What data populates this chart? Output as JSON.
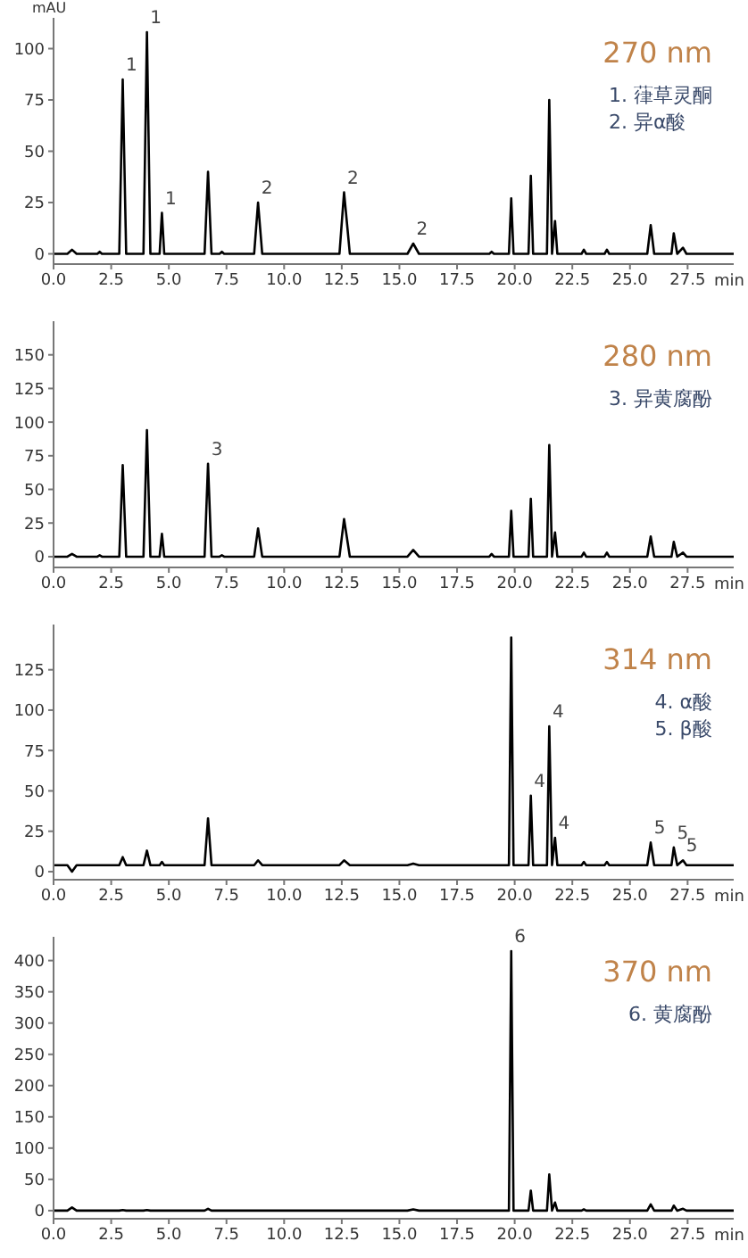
{
  "chart_data": [
    {
      "type": "line",
      "title": "270 nm",
      "xlabel": "min",
      "ylabel": "mAU",
      "xlim": [
        0,
        29.5
      ],
      "ylim": [
        -5,
        115
      ],
      "xticks": [
        {
          "value": 0,
          "label": "0.0"
        },
        2.5,
        {
          "value": 5,
          "label": "5.0"
        },
        7.5,
        {
          "value": 10,
          "label": "10.0"
        },
        12.5,
        {
          "value": 15,
          "label": "15.0"
        },
        17.5,
        {
          "value": 20,
          "label": "20.0"
        },
        22.5,
        {
          "value": 25,
          "label": "25.0"
        },
        27.5
      ],
      "yticks": [
        0,
        25,
        50,
        75,
        100
      ],
      "x": [
        0,
        0.6,
        0.8,
        1.0,
        1.9,
        2.0,
        2.1,
        2.85,
        3.0,
        3.15,
        3.9,
        4.05,
        4.2,
        4.6,
        4.7,
        4.8,
        6.55,
        6.7,
        6.85,
        7.2,
        7.3,
        7.4,
        8.7,
        8.87,
        9.05,
        12.4,
        12.6,
        12.85,
        15.35,
        15.6,
        15.85,
        18.9,
        19.0,
        19.1,
        19.75,
        19.85,
        19.95,
        20.6,
        20.7,
        20.8,
        21.4,
        21.5,
        21.62,
        21.75,
        21.85,
        22.9,
        23.0,
        23.1,
        23.9,
        24.0,
        24.1,
        25.75,
        25.9,
        26.05,
        26.8,
        26.9,
        27.05,
        27.3,
        27.45,
        29.5
      ],
      "series": [
        {
          "color": "#000000",
          "values": [
            0,
            0,
            2,
            0,
            0,
            1,
            0,
            0,
            85,
            0,
            0,
            108,
            0,
            0,
            20,
            0,
            0,
            40,
            0,
            0,
            1,
            0,
            0,
            25,
            0,
            0,
            30,
            0,
            0,
            5,
            0,
            0,
            1,
            0,
            0,
            27,
            0,
            0,
            38,
            0,
            0,
            75,
            0,
            16,
            0,
            0,
            2,
            0,
            0,
            2,
            0,
            0,
            14,
            0,
            0,
            10,
            0,
            3,
            0,
            0
          ]
        }
      ],
      "annotations": [
        {
          "text": "1",
          "x": 3.0,
          "y": 85
        },
        {
          "text": "1",
          "x": 4.05,
          "y": 108
        },
        {
          "text": "1",
          "x": 4.7,
          "y": 20
        },
        {
          "text": "2",
          "x": 8.87,
          "y": 25
        },
        {
          "text": "2",
          "x": 12.6,
          "y": 30
        },
        {
          "text": "2",
          "x": 15.6,
          "y": 5
        },
        "1. 葎草灵酮",
        "2. 异α酸"
      ]
    },
    {
      "type": "line",
      "title": "280 nm",
      "xlabel": "min",
      "xlim": [
        0,
        29.5
      ],
      "ylim": [
        -8,
        175
      ],
      "xticks": [
        {
          "value": 0,
          "label": "0.0"
        },
        2.5,
        {
          "value": 5,
          "label": "5.0"
        },
        7.5,
        {
          "value": 10,
          "label": "10.0"
        },
        12.5,
        {
          "value": 15,
          "label": "15.0"
        },
        17.5,
        {
          "value": 20,
          "label": "20.0"
        },
        22.5,
        {
          "value": 25,
          "label": "25.0"
        },
        27.5
      ],
      "yticks": [
        0,
        25,
        50,
        75,
        100,
        125,
        150
      ],
      "x": [
        0,
        0.6,
        0.8,
        1.0,
        1.9,
        2.0,
        2.1,
        2.85,
        3.0,
        3.15,
        3.9,
        4.05,
        4.2,
        4.6,
        4.7,
        4.8,
        6.55,
        6.7,
        6.85,
        7.2,
        7.3,
        7.4,
        8.7,
        8.87,
        9.05,
        12.4,
        12.6,
        12.85,
        15.35,
        15.6,
        15.85,
        18.9,
        19.0,
        19.1,
        19.75,
        19.85,
        19.95,
        20.6,
        20.7,
        20.8,
        21.4,
        21.5,
        21.62,
        21.75,
        21.85,
        22.9,
        23.0,
        23.1,
        23.9,
        24.0,
        24.1,
        25.75,
        25.9,
        26.05,
        26.8,
        26.9,
        27.05,
        27.3,
        27.45,
        29.5
      ],
      "series": [
        {
          "color": "#000000",
          "values": [
            0,
            0,
            2,
            0,
            0,
            1,
            0,
            0,
            68,
            0,
            0,
            94,
            0,
            0,
            17,
            0,
            0,
            69,
            0,
            0,
            1,
            0,
            0,
            21,
            0,
            0,
            28,
            0,
            0,
            5,
            0,
            0,
            2,
            0,
            0,
            34,
            0,
            0,
            43,
            0,
            0,
            83,
            0,
            18,
            0,
            0,
            3,
            0,
            0,
            3,
            0,
            0,
            15,
            0,
            0,
            11,
            0,
            3,
            0,
            0
          ]
        }
      ],
      "annotations": [
        {
          "text": "3",
          "x": 6.7,
          "y": 69
        },
        "3. 异黄腐酚"
      ]
    },
    {
      "type": "line",
      "title": "314 nm",
      "xlabel": "min",
      "xlim": [
        0,
        29.5
      ],
      "ylim": [
        -5,
        153
      ],
      "xticks": [
        {
          "value": 0,
          "label": "0.0"
        },
        2.5,
        {
          "value": 5,
          "label": "5.0"
        },
        7.5,
        {
          "value": 10,
          "label": "10.0"
        },
        12.5,
        {
          "value": 15,
          "label": "15.0"
        },
        17.5,
        {
          "value": 20,
          "label": "20.0"
        },
        22.5,
        {
          "value": 25,
          "label": "25.0"
        },
        27.5
      ],
      "yticks": [
        0,
        25,
        50,
        75,
        100,
        125
      ],
      "x": [
        0,
        0.6,
        0.8,
        1.0,
        1.9,
        2.0,
        2.1,
        2.85,
        3.0,
        3.15,
        3.9,
        4.05,
        4.2,
        4.6,
        4.7,
        4.8,
        6.55,
        6.7,
        6.85,
        7.2,
        7.3,
        7.4,
        8.7,
        8.87,
        9.05,
        12.4,
        12.6,
        12.85,
        15.35,
        15.6,
        15.85,
        18.9,
        19.0,
        19.1,
        19.75,
        19.85,
        19.95,
        20.6,
        20.7,
        20.8,
        21.4,
        21.5,
        21.62,
        21.75,
        21.85,
        22.9,
        23.0,
        23.1,
        23.9,
        24.0,
        24.1,
        25.75,
        25.9,
        26.05,
        26.8,
        26.9,
        27.05,
        27.3,
        27.45,
        29.5
      ],
      "series": [
        {
          "color": "#000000",
          "values": [
            4,
            4,
            0,
            4,
            4,
            4,
            4,
            4,
            9,
            4,
            4,
            13,
            4,
            4,
            6,
            4,
            4,
            33,
            4,
            4,
            4,
            4,
            4,
            7,
            4,
            4,
            7,
            4,
            4,
            5,
            4,
            4,
            4,
            4,
            4,
            145,
            4,
            4,
            47,
            4,
            4,
            90,
            4,
            21,
            4,
            4,
            6,
            4,
            4,
            6,
            4,
            4,
            18,
            4,
            4,
            15,
            4,
            7,
            4,
            4
          ]
        }
      ],
      "annotations": [
        {
          "text": "4",
          "x": 20.7,
          "y": 47
        },
        {
          "text": "4",
          "x": 21.5,
          "y": 90
        },
        {
          "text": "4",
          "x": 21.75,
          "y": 21
        },
        {
          "text": "5",
          "x": 25.9,
          "y": 18
        },
        {
          "text": "5",
          "x": 26.9,
          "y": 15
        },
        {
          "text": "5",
          "x": 27.3,
          "y": 7
        },
        "4. α酸",
        "5. β酸"
      ]
    },
    {
      "type": "line",
      "title": "370 nm",
      "xlabel": "min",
      "xlim": [
        0,
        29.5
      ],
      "ylim": [
        -13,
        438
      ],
      "xticks": [
        {
          "value": 0,
          "label": "0.0"
        },
        2.5,
        {
          "value": 5,
          "label": "5.0"
        },
        7.5,
        {
          "value": 10,
          "label": "10.0"
        },
        12.5,
        {
          "value": 15,
          "label": "15.0"
        },
        17.5,
        {
          "value": 20,
          "label": "20.0"
        },
        22.5,
        {
          "value": 25,
          "label": "25.0"
        },
        27.5
      ],
      "yticks": [
        0,
        50,
        100,
        150,
        200,
        250,
        300,
        350,
        400
      ],
      "x": [
        0,
        0.6,
        0.8,
        1.0,
        1.9,
        2.0,
        2.1,
        2.85,
        3.0,
        3.15,
        3.9,
        4.05,
        4.2,
        4.6,
        4.7,
        4.8,
        6.55,
        6.7,
        6.85,
        7.2,
        7.3,
        7.4,
        8.7,
        8.87,
        9.05,
        12.4,
        12.6,
        12.85,
        15.35,
        15.6,
        15.85,
        18.9,
        19.0,
        19.1,
        19.75,
        19.85,
        19.95,
        20.6,
        20.7,
        20.8,
        21.4,
        21.5,
        21.62,
        21.75,
        21.85,
        22.9,
        23.0,
        23.1,
        23.9,
        24.0,
        24.1,
        25.75,
        25.9,
        26.05,
        26.8,
        26.9,
        27.05,
        27.3,
        27.45,
        29.5
      ],
      "series": [
        {
          "color": "#000000",
          "values": [
            0,
            0,
            5,
            0,
            0,
            0,
            0,
            0,
            1,
            0,
            0,
            1,
            0,
            0,
            0,
            0,
            0,
            3,
            0,
            0,
            0,
            0,
            0,
            0,
            0,
            0,
            0,
            0,
            0,
            2,
            0,
            0,
            0,
            0,
            0,
            415,
            0,
            0,
            32,
            0,
            0,
            58,
            0,
            13,
            0,
            0,
            2,
            0,
            0,
            0,
            0,
            0,
            10,
            0,
            0,
            8,
            0,
            3,
            0,
            0
          ]
        }
      ],
      "annotations": [
        {
          "text": "6",
          "x": 19.85,
          "y": 415
        },
        "6. 黄腐酚"
      ]
    }
  ]
}
